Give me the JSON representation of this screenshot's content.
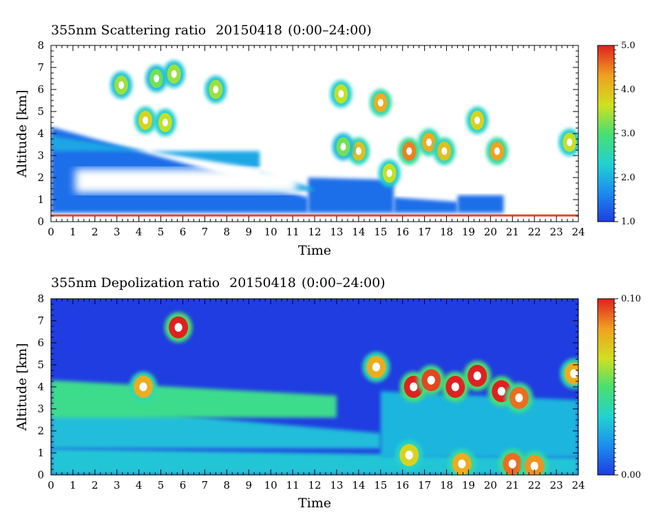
{
  "chart_data": [
    {
      "type": "heatmap",
      "title": "355nm Scattering ratio",
      "date": "20150418",
      "time_range": "(0:00–24:00)",
      "xlabel": "Time",
      "ylabel": "Altitude [km]",
      "xlim": [
        0,
        24
      ],
      "ylim": [
        0,
        8
      ],
      "x_ticks": [
        "0",
        "1",
        "2",
        "3",
        "4",
        "5",
        "6",
        "7",
        "8",
        "9",
        "10",
        "11",
        "12",
        "13",
        "14",
        "15",
        "16",
        "17",
        "18",
        "19",
        "20",
        "21",
        "22",
        "23",
        "24"
      ],
      "y_ticks": [
        "0",
        "1",
        "2",
        "3",
        "4",
        "5",
        "6",
        "7",
        "8"
      ],
      "colorbar": {
        "range": [
          1.0,
          5.0
        ],
        "tick_labels": [
          "1.0",
          "2.0",
          "3.0",
          "4.0",
          "5.0"
        ],
        "colors": [
          "#1f3de0",
          "#1b8fef",
          "#22d2d0",
          "#48e070",
          "#d0e020",
          "#f0a020",
          "#e02020"
        ]
      },
      "background_color": "#ffffff",
      "layers": [
        {
          "t_start": 0,
          "t_end": 11.7,
          "alt_bottom": 0.4,
          "alt_top_start": 4.3,
          "alt_top_end": 1.1,
          "level": 1.4
        },
        {
          "t_start": 11.7,
          "t_end": 15.6,
          "alt_bottom": 0.4,
          "alt_top_start": 2.0,
          "alt_top_end": 1.9,
          "level": 1.4
        },
        {
          "t_start": 15.6,
          "t_end": 18.5,
          "alt_bottom": 0.4,
          "alt_top_start": 1.1,
          "alt_top_end": 0.9,
          "level": 1.4
        },
        {
          "t_start": 18.5,
          "t_end": 20.6,
          "alt_bottom": 0.4,
          "alt_top_start": 1.2,
          "alt_top_end": 1.2,
          "level": 1.4
        },
        {
          "t_start": 0,
          "t_end": 9.5,
          "alt_bottom": 3.2,
          "alt_top_start": 3.9,
          "alt_top_end": 2.4,
          "level": 1.9
        },
        {
          "t_start": 9.5,
          "t_end": 12.0,
          "alt_bottom": 1.4,
          "alt_top_start": 2.3,
          "alt_top_end": 1.5,
          "level": 1.9
        }
      ],
      "gaps": [
        {
          "t_start": 1.1,
          "t_end": 11.2,
          "alt_bottom": 1.3,
          "alt_top": 2.4
        }
      ],
      "clouds": [
        {
          "t": 3.2,
          "alt": 6.2,
          "level": 3.4
        },
        {
          "t": 4.8,
          "alt": 6.5,
          "level": 3.2
        },
        {
          "t": 5.6,
          "alt": 6.7,
          "level": 3.4
        },
        {
          "t": 7.5,
          "alt": 6.0,
          "level": 3.4
        },
        {
          "t": 4.3,
          "alt": 4.6,
          "level": 3.8
        },
        {
          "t": 5.2,
          "alt": 4.5,
          "level": 3.6
        },
        {
          "t": 13.2,
          "alt": 5.8,
          "level": 3.6
        },
        {
          "t": 14.0,
          "alt": 3.2,
          "level": 4.0
        },
        {
          "t": 13.3,
          "alt": 3.4,
          "level": 3.2
        },
        {
          "t": 15.0,
          "alt": 5.4,
          "level": 4.2
        },
        {
          "t": 15.4,
          "alt": 2.2,
          "level": 3.6
        },
        {
          "t": 16.3,
          "alt": 3.2,
          "level": 4.5
        },
        {
          "t": 17.2,
          "alt": 3.6,
          "level": 4.2
        },
        {
          "t": 17.9,
          "alt": 3.2,
          "level": 4.0
        },
        {
          "t": 19.4,
          "alt": 4.6,
          "level": 3.8
        },
        {
          "t": 20.3,
          "alt": 3.2,
          "level": 4.3
        },
        {
          "t": 23.6,
          "alt": 3.6,
          "level": 3.6
        }
      ],
      "surface_line": {
        "alt": 0.28,
        "level": 4.8
      }
    },
    {
      "type": "heatmap",
      "title": "355nm Depolization ratio",
      "date": "20150418",
      "time_range": "(0:00–24:00)",
      "xlabel": "Time",
      "ylabel": "Altitude [km]",
      "xlim": [
        0,
        24
      ],
      "ylim": [
        0,
        8
      ],
      "x_ticks": [
        "0",
        "1",
        "2",
        "3",
        "4",
        "5",
        "6",
        "7",
        "8",
        "9",
        "10",
        "11",
        "12",
        "13",
        "14",
        "15",
        "16",
        "17",
        "18",
        "19",
        "20",
        "21",
        "22",
        "23",
        "24"
      ],
      "y_ticks": [
        "0",
        "1",
        "2",
        "3",
        "4",
        "5",
        "6",
        "7",
        "8"
      ],
      "colorbar": {
        "range": [
          0.0,
          0.1
        ],
        "tick_labels": [
          "0.00",
          "0.10"
        ],
        "colors": [
          "#1f3de0",
          "#1b8fef",
          "#22d2d0",
          "#48e070",
          "#d0e020",
          "#f0a020",
          "#e02020"
        ]
      },
      "background_level": 0.003,
      "layers": [
        {
          "t_start": 0,
          "t_end": 24,
          "alt_bottom": 0.0,
          "alt_top_start": 1.2,
          "alt_top_end": 0.8,
          "level": 0.03
        },
        {
          "t_start": 0,
          "t_end": 15,
          "alt_bottom": 1.2,
          "alt_top_start": 3.2,
          "alt_top_end": 1.9,
          "level": 0.028
        },
        {
          "t_start": 0,
          "t_end": 13,
          "alt_bottom": 2.6,
          "alt_top_start": 4.3,
          "alt_top_end": 3.6,
          "level": 0.045
        },
        {
          "t_start": 15,
          "t_end": 24,
          "alt_bottom": 0.8,
          "alt_top_start": 3.8,
          "alt_top_end": 3.4,
          "level": 0.026
        }
      ],
      "hotspots": [
        {
          "t": 16.3,
          "alt": 0.9,
          "level": 0.07
        },
        {
          "t": 18.7,
          "alt": 0.5,
          "level": 0.08
        },
        {
          "t": 21.0,
          "alt": 0.5,
          "level": 0.09
        },
        {
          "t": 22.0,
          "alt": 0.4,
          "level": 0.085
        },
        {
          "t": 5.8,
          "alt": 6.7,
          "level": 0.1
        },
        {
          "t": 16.5,
          "alt": 4.0,
          "level": 0.1
        },
        {
          "t": 17.3,
          "alt": 4.3,
          "level": 0.095
        },
        {
          "t": 18.4,
          "alt": 4.0,
          "level": 0.1
        },
        {
          "t": 19.4,
          "alt": 4.5,
          "level": 0.1
        },
        {
          "t": 20.5,
          "alt": 3.8,
          "level": 0.1
        },
        {
          "t": 21.3,
          "alt": 3.5,
          "level": 0.09
        },
        {
          "t": 23.8,
          "alt": 4.6,
          "level": 0.08
        },
        {
          "t": 4.2,
          "alt": 4.0,
          "level": 0.08
        },
        {
          "t": 14.8,
          "alt": 4.9,
          "level": 0.08
        }
      ]
    }
  ]
}
